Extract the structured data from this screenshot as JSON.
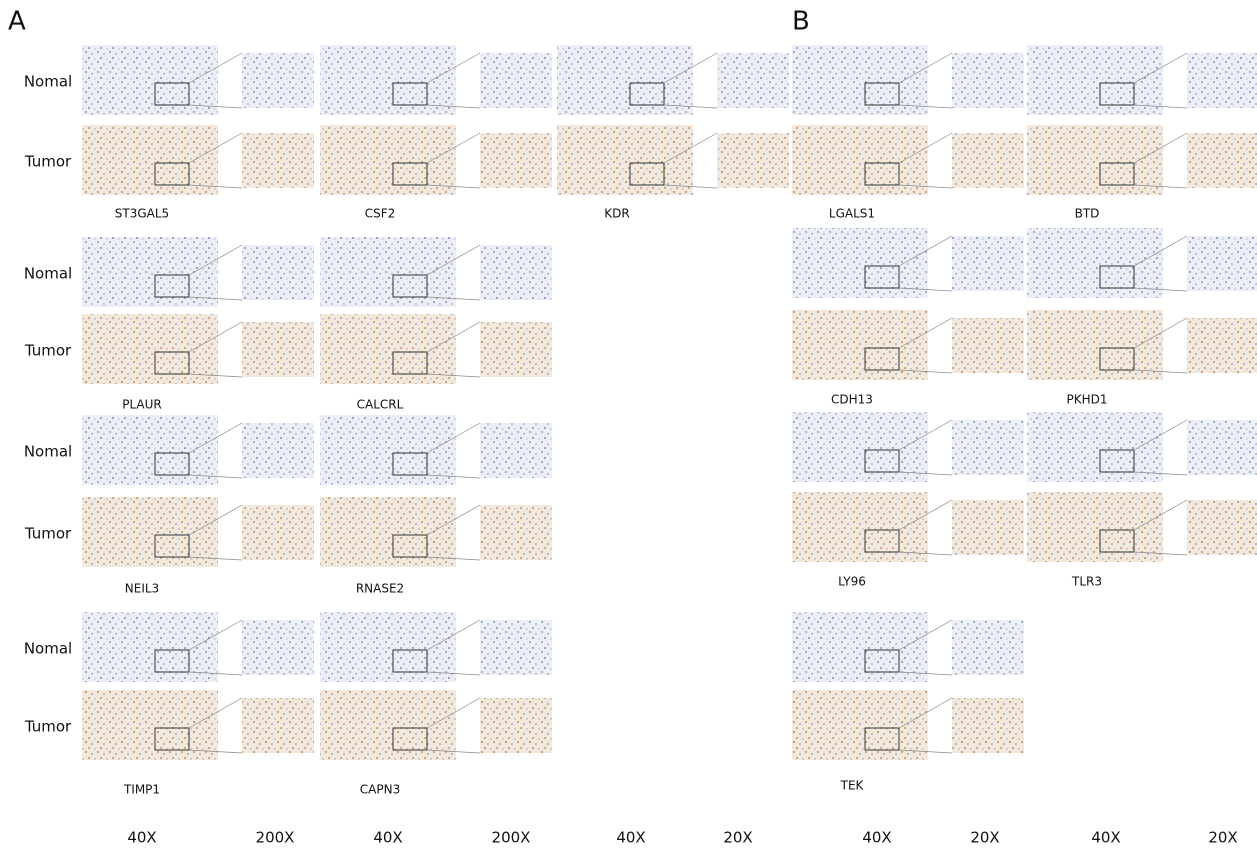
{
  "panels": [
    {
      "label": "A",
      "groups": [
        {
          "row_labels": [
            "Nomal",
            "Tumor"
          ],
          "genes": [
            "ST3GAL5",
            "CSF2",
            "KDR"
          ]
        },
        {
          "row_labels": [
            "Nomal",
            "Tumor"
          ],
          "genes": [
            "PLAUR",
            "CALCRL"
          ]
        },
        {
          "row_labels": [
            "Nomal",
            "Tumor"
          ],
          "genes": [
            "NEIL3",
            "RNASE2"
          ]
        },
        {
          "row_labels": [
            "Nomal",
            "Tumor"
          ],
          "genes": [
            "TIMP1",
            "CAPN3"
          ]
        }
      ]
    },
    {
      "label": "B",
      "groups": [
        {
          "genes": [
            "LGALS1",
            "BTD"
          ]
        },
        {
          "genes": [
            "CDH13",
            "PKHD1"
          ]
        },
        {
          "genes": [
            "LY96",
            "TLR3"
          ]
        },
        {
          "genes": [
            "TEK"
          ]
        }
      ]
    }
  ],
  "magnifications": [
    "40X",
    "200X",
    "40X",
    "200X",
    "40X",
    "20X",
    "40X",
    "20X",
    "40X",
    "20X"
  ]
}
